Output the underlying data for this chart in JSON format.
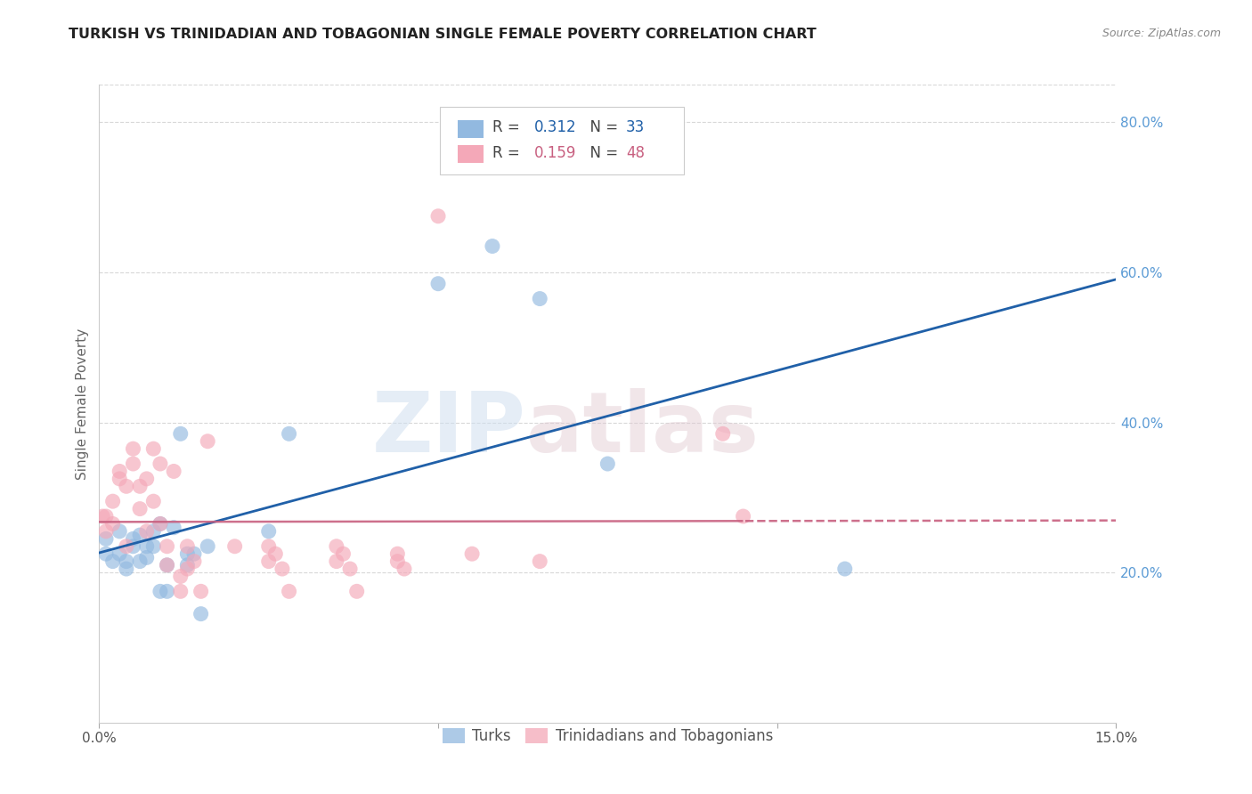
{
  "title": "TURKISH VS TRINIDADIAN AND TOBAGONIAN SINGLE FEMALE POVERTY CORRELATION CHART",
  "source": "Source: ZipAtlas.com",
  "ylabel_label": "Single Female Poverty",
  "x_min": 0.0,
  "x_max": 0.15,
  "y_min": 0.0,
  "y_max": 0.85,
  "y_ticks_right": [
    0.2,
    0.4,
    0.6,
    0.8
  ],
  "y_tick_labels_right": [
    "20.0%",
    "40.0%",
    "60.0%",
    "80.0%"
  ],
  "turks_color": "#92b9e0",
  "tnt_color": "#f4a8b8",
  "turks_line_color": "#2060a8",
  "tnt_line_color": "#c86080",
  "turks_label": "Turks",
  "tnt_label": "Trinidadians and Tobagonians",
  "legend_R1": "R = 0.312",
  "legend_N1": "N = 33",
  "legend_R2": "R = 0.159",
  "legend_N2": "N = 48",
  "legend_R_color": "#2060a8",
  "legend_N_color": "#2060a8",
  "legend_R2_color": "#c86080",
  "legend_N2_color": "#c86080",
  "turks_x": [
    0.001,
    0.001,
    0.002,
    0.003,
    0.003,
    0.004,
    0.004,
    0.005,
    0.005,
    0.006,
    0.006,
    0.007,
    0.007,
    0.008,
    0.008,
    0.009,
    0.009,
    0.01,
    0.01,
    0.011,
    0.012,
    0.013,
    0.013,
    0.014,
    0.015,
    0.016,
    0.025,
    0.028,
    0.05,
    0.058,
    0.065,
    0.075,
    0.11
  ],
  "turks_y": [
    0.245,
    0.225,
    0.215,
    0.255,
    0.225,
    0.215,
    0.205,
    0.235,
    0.245,
    0.215,
    0.25,
    0.22,
    0.235,
    0.255,
    0.235,
    0.265,
    0.175,
    0.175,
    0.21,
    0.26,
    0.385,
    0.225,
    0.21,
    0.225,
    0.145,
    0.235,
    0.255,
    0.385,
    0.585,
    0.635,
    0.565,
    0.345,
    0.205
  ],
  "tnt_x": [
    0.0005,
    0.001,
    0.001,
    0.002,
    0.002,
    0.003,
    0.003,
    0.004,
    0.004,
    0.005,
    0.005,
    0.006,
    0.006,
    0.007,
    0.007,
    0.008,
    0.008,
    0.009,
    0.009,
    0.01,
    0.01,
    0.011,
    0.012,
    0.012,
    0.013,
    0.013,
    0.014,
    0.015,
    0.016,
    0.02,
    0.025,
    0.025,
    0.026,
    0.027,
    0.028,
    0.035,
    0.035,
    0.036,
    0.037,
    0.038,
    0.044,
    0.044,
    0.045,
    0.05,
    0.055,
    0.065,
    0.092,
    0.095
  ],
  "tnt_y": [
    0.275,
    0.275,
    0.255,
    0.295,
    0.265,
    0.335,
    0.325,
    0.315,
    0.235,
    0.365,
    0.345,
    0.315,
    0.285,
    0.325,
    0.255,
    0.365,
    0.295,
    0.345,
    0.265,
    0.235,
    0.21,
    0.335,
    0.195,
    0.175,
    0.235,
    0.205,
    0.215,
    0.175,
    0.375,
    0.235,
    0.235,
    0.215,
    0.225,
    0.205,
    0.175,
    0.235,
    0.215,
    0.225,
    0.205,
    0.175,
    0.225,
    0.215,
    0.205,
    0.675,
    0.225,
    0.215,
    0.385,
    0.275
  ],
  "watermark_zip": "ZIP",
  "watermark_atlas": "atlas",
  "background_color": "#ffffff",
  "grid_color": "#d8d8d8",
  "title_fontsize": 11.5,
  "axis_label_fontsize": 11,
  "tick_fontsize": 11,
  "right_tick_color": "#5b9bd5",
  "source_color": "#888888"
}
